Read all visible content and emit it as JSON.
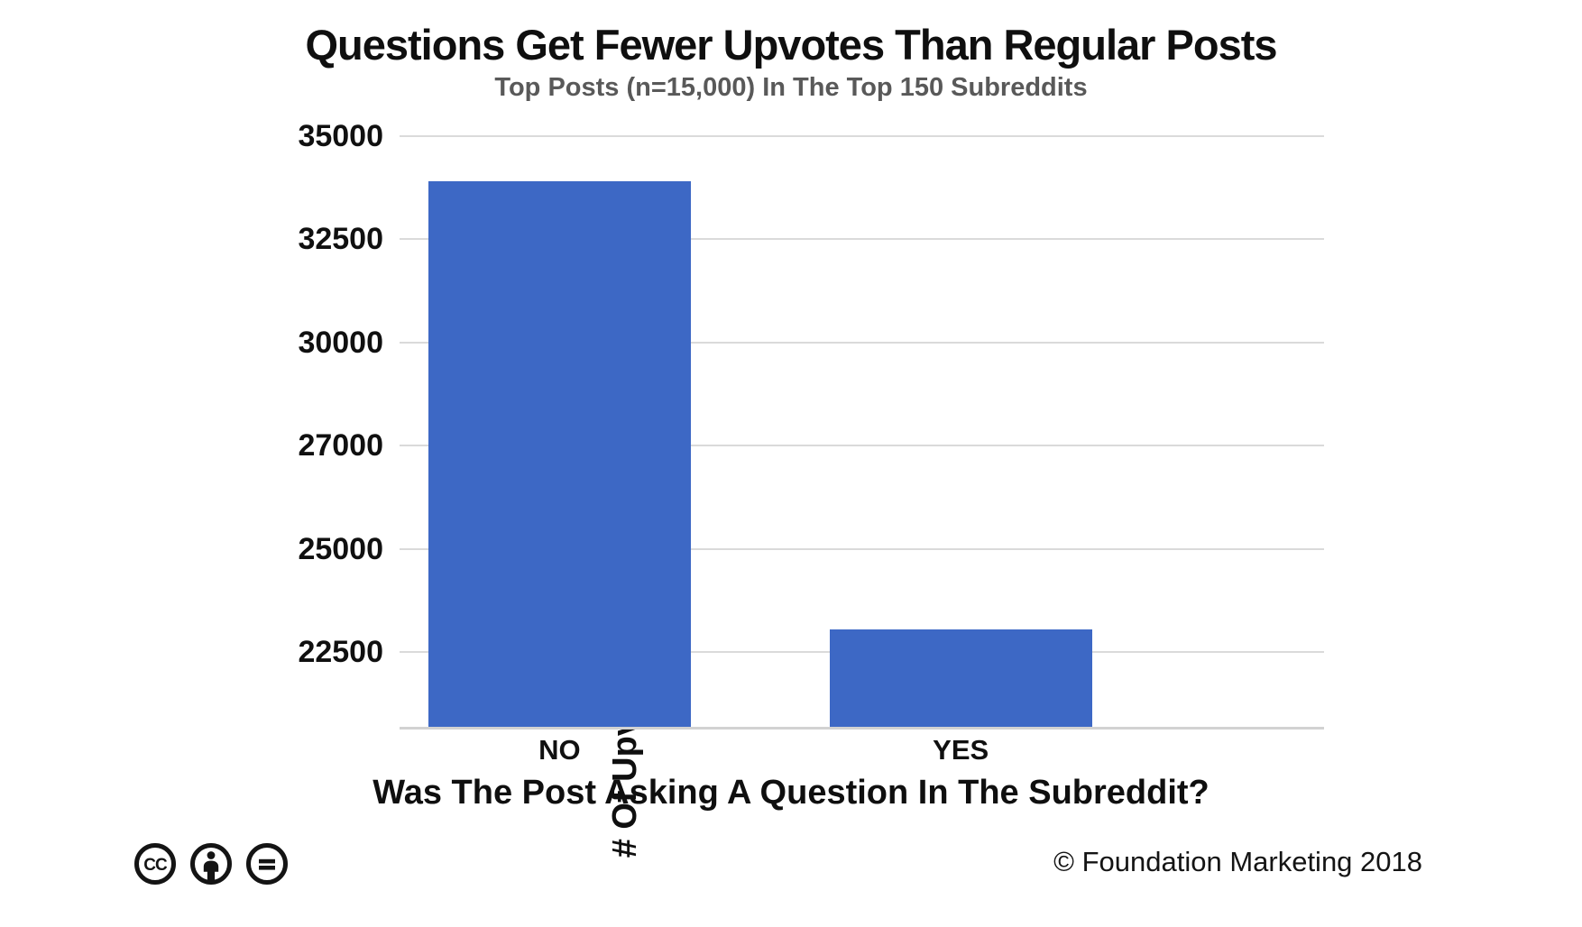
{
  "header": {
    "title": "Questions Get Fewer Upvotes Than Regular Posts",
    "subtitle": "Top Posts (n=15,000) In The Top 150 Subreddits"
  },
  "chart_data": {
    "type": "bar",
    "title": "Questions Get Fewer Upvotes Than Regular Posts",
    "subtitle": "Top Posts (n=15,000) In The Top 150 Subreddits",
    "categories": [
      "NO",
      "YES"
    ],
    "values": [
      33900,
      23050
    ],
    "xlabel": "Was The Post Asking A Question In The Subreddit?",
    "ylabel": "# Of Upvotes(Average of 15k posts)",
    "yticks": [
      35000,
      32500,
      30000,
      27000,
      25000,
      22500
    ],
    "ylim": [
      20650,
      35000
    ],
    "bar_color": "#3d68c5",
    "gridline_color": "#dadada",
    "legend": "none",
    "grid": true,
    "layout": {
      "bar_center_frac": [
        0.173,
        0.607
      ],
      "bar_width_frac": 0.284
    }
  },
  "footer": {
    "license_icons": [
      "cc-icon",
      "cc-by-icon",
      "cc-nd-icon"
    ],
    "copyright": "© Foundation Marketing 2018"
  }
}
